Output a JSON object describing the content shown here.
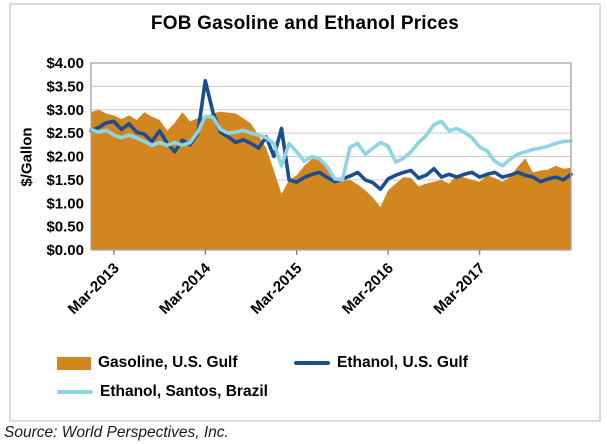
{
  "source": {
    "text": "Source: World Perspectives, Inc."
  },
  "chart_data": {
    "type": "area",
    "title": "FOB Gasoline and Ethanol Prices",
    "xlabel": "",
    "ylabel": "$/Gallon",
    "ylim": [
      0,
      4
    ],
    "grid": true,
    "grid_color": "#C9C9C9",
    "plot_border_color": "#A6A6A6",
    "tick_color": "#7F7F7F",
    "legend_position": "bottom",
    "x_range_note": "monthly values, Dec-2012 through Mar-2018",
    "y_ticks": [
      {
        "value": 0.0,
        "label": "$0.00"
      },
      {
        "value": 0.5,
        "label": "$0.50"
      },
      {
        "value": 1.0,
        "label": "$1.00"
      },
      {
        "value": 1.5,
        "label": "$1.50"
      },
      {
        "value": 2.0,
        "label": "$2.00"
      },
      {
        "value": 2.5,
        "label": "$2.50"
      },
      {
        "value": 3.0,
        "label": "$3.00"
      },
      {
        "value": 3.5,
        "label": "$3.50"
      },
      {
        "value": 4.0,
        "label": "$4.00"
      }
    ],
    "x_ticks": [
      {
        "index": 3,
        "label": "Mar-2013"
      },
      {
        "index": 15,
        "label": "Mar-2014"
      },
      {
        "index": 27,
        "label": "Mar-2015"
      },
      {
        "index": 39,
        "label": "Mar-2016"
      },
      {
        "index": 51,
        "label": "Mar-2017"
      }
    ],
    "series": [
      {
        "name": "Gasoline, U.S. Gulf",
        "type": "area",
        "color": "#D28620",
        "values": [
          2.95,
          3.0,
          2.92,
          2.88,
          2.8,
          2.88,
          2.78,
          2.95,
          2.85,
          2.78,
          2.55,
          2.72,
          2.95,
          2.75,
          2.82,
          2.86,
          2.92,
          2.96,
          2.94,
          2.92,
          2.82,
          2.7,
          2.45,
          2.18,
          1.7,
          1.2,
          1.5,
          1.6,
          1.8,
          1.95,
          1.96,
          1.8,
          1.45,
          1.48,
          1.5,
          1.4,
          1.28,
          1.12,
          0.92,
          1.28,
          1.42,
          1.56,
          1.54,
          1.36,
          1.42,
          1.46,
          1.5,
          1.42,
          1.6,
          1.55,
          1.5,
          1.46,
          1.6,
          1.54,
          1.46,
          1.56,
          1.78,
          1.96,
          1.66,
          1.7,
          1.72,
          1.8,
          1.74,
          1.76
        ]
      },
      {
        "name": "Ethanol, U.S. Gulf",
        "type": "line",
        "color": "#1C4E8F",
        "values": [
          2.55,
          2.62,
          2.72,
          2.75,
          2.58,
          2.7,
          2.52,
          2.48,
          2.32,
          2.55,
          2.28,
          2.1,
          2.35,
          2.25,
          2.48,
          3.62,
          2.95,
          2.52,
          2.42,
          2.3,
          2.36,
          2.28,
          2.18,
          2.42,
          2.0,
          2.6,
          1.5,
          1.45,
          1.55,
          1.62,
          1.66,
          1.55,
          1.46,
          1.52,
          1.58,
          1.66,
          1.5,
          1.44,
          1.3,
          1.52,
          1.6,
          1.66,
          1.7,
          1.54,
          1.6,
          1.74,
          1.56,
          1.62,
          1.56,
          1.62,
          1.66,
          1.56,
          1.62,
          1.66,
          1.56,
          1.6,
          1.66,
          1.6,
          1.56,
          1.46,
          1.52,
          1.56,
          1.5,
          1.62
        ]
      },
      {
        "name": "Ethanol, Santos, Brazil",
        "type": "line",
        "color": "#8FD4E4",
        "values": [
          2.58,
          2.52,
          2.56,
          2.46,
          2.4,
          2.46,
          2.4,
          2.32,
          2.24,
          2.3,
          2.24,
          2.3,
          2.24,
          2.3,
          2.52,
          2.86,
          2.84,
          2.58,
          2.5,
          2.52,
          2.56,
          2.5,
          2.46,
          2.4,
          2.28,
          1.8,
          2.28,
          2.1,
          1.9,
          2.0,
          1.95,
          1.78,
          1.52,
          1.5,
          2.2,
          2.28,
          2.05,
          2.18,
          2.3,
          2.22,
          1.88,
          1.96,
          2.1,
          2.3,
          2.45,
          2.68,
          2.75,
          2.55,
          2.6,
          2.52,
          2.4,
          2.2,
          2.12,
          1.9,
          1.8,
          1.94,
          2.05,
          2.1,
          2.15,
          2.18,
          2.22,
          2.28,
          2.32,
          2.33
        ]
      }
    ]
  }
}
